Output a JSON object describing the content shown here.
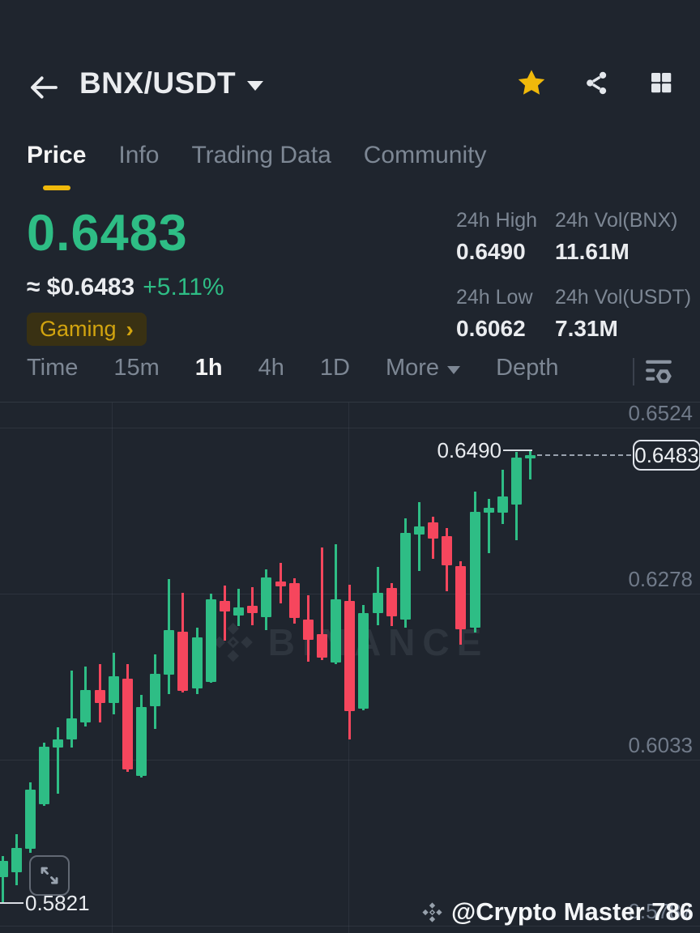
{
  "header": {
    "title": "BNX/USDT"
  },
  "tabs": [
    {
      "label": "Price",
      "active": true
    },
    {
      "label": "Info",
      "active": false
    },
    {
      "label": "Trading Data",
      "active": false
    },
    {
      "label": "Community",
      "active": false
    }
  ],
  "price": {
    "last": "0.6483",
    "fiat_approx": "≈ $0.6483",
    "change": "+5.11%",
    "tag_label": "Gaming",
    "tag_arrow": "›"
  },
  "stats": [
    {
      "label": "24h High",
      "value": "0.6490"
    },
    {
      "label": "24h Vol(BNX)",
      "value": "11.61M"
    },
    {
      "label": "24h Low",
      "value": "0.6062"
    },
    {
      "label": "24h Vol(USDT)",
      "value": "7.31M"
    }
  ],
  "toolbar": {
    "items": [
      {
        "label": "Time",
        "active": false,
        "caret": false
      },
      {
        "label": "15m",
        "active": false,
        "caret": false
      },
      {
        "label": "1h",
        "active": true,
        "caret": false
      },
      {
        "label": "4h",
        "active": false,
        "caret": false
      },
      {
        "label": "1D",
        "active": false,
        "caret": false
      },
      {
        "label": "More",
        "active": false,
        "caret": true
      },
      {
        "label": "Depth",
        "active": false,
        "caret": false
      }
    ]
  },
  "chart_data": {
    "type": "candlestick",
    "pair": "BNX/USDT",
    "interval": "1h",
    "ylim": [
      0.576,
      0.656
    ],
    "grid": true,
    "up_color": "#2ebd85",
    "down_color": "#f6465d",
    "y_ticks": [
      {
        "price": 0.6524,
        "label": "0.6524"
      },
      {
        "price": 0.6278,
        "label": "0.6278"
      },
      {
        "price": 0.6033,
        "label": "0.6033"
      },
      {
        "price": 0.5787,
        "label": "0.5787"
      }
    ],
    "high_marker": {
      "price": 0.649,
      "label": "0.6490"
    },
    "low_marker": {
      "price": 0.5821,
      "label": "0.5821"
    },
    "last_price": {
      "price": 0.6483,
      "label": "0.6483"
    },
    "candles": [
      {
        "o": 0.5859,
        "h": 0.589,
        "l": 0.5821,
        "c": 0.5883
      },
      {
        "o": 0.5867,
        "h": 0.5923,
        "l": 0.5847,
        "c": 0.5903
      },
      {
        "o": 0.5901,
        "h": 0.5999,
        "l": 0.5895,
        "c": 0.5989
      },
      {
        "o": 0.5967,
        "h": 0.6058,
        "l": 0.5965,
        "c": 0.6052
      },
      {
        "o": 0.6051,
        "h": 0.6081,
        "l": 0.5983,
        "c": 0.6063
      },
      {
        "o": 0.6063,
        "h": 0.6165,
        "l": 0.6051,
        "c": 0.6094
      },
      {
        "o": 0.6088,
        "h": 0.6171,
        "l": 0.6082,
        "c": 0.6136
      },
      {
        "o": 0.6136,
        "h": 0.6174,
        "l": 0.6088,
        "c": 0.6117
      },
      {
        "o": 0.6117,
        "h": 0.6191,
        "l": 0.61,
        "c": 0.6156
      },
      {
        "o": 0.6153,
        "h": 0.6174,
        "l": 0.6015,
        "c": 0.6019
      },
      {
        "o": 0.6009,
        "h": 0.6129,
        "l": 0.6007,
        "c": 0.6111
      },
      {
        "o": 0.6112,
        "h": 0.6189,
        "l": 0.6079,
        "c": 0.616
      },
      {
        "o": 0.6159,
        "h": 0.63,
        "l": 0.613,
        "c": 0.6225
      },
      {
        "o": 0.6222,
        "h": 0.628,
        "l": 0.6132,
        "c": 0.6135
      },
      {
        "o": 0.6138,
        "h": 0.6228,
        "l": 0.613,
        "c": 0.6214
      },
      {
        "o": 0.6148,
        "h": 0.6278,
        "l": 0.6147,
        "c": 0.627
      },
      {
        "o": 0.6268,
        "h": 0.629,
        "l": 0.6209,
        "c": 0.6252
      },
      {
        "o": 0.6246,
        "h": 0.6286,
        "l": 0.6231,
        "c": 0.6258
      },
      {
        "o": 0.6261,
        "h": 0.6288,
        "l": 0.6232,
        "c": 0.625
      },
      {
        "o": 0.6244,
        "h": 0.6314,
        "l": 0.6225,
        "c": 0.6302
      },
      {
        "o": 0.6297,
        "h": 0.6324,
        "l": 0.6264,
        "c": 0.6289
      },
      {
        "o": 0.6294,
        "h": 0.6301,
        "l": 0.6234,
        "c": 0.6243
      },
      {
        "o": 0.624,
        "h": 0.6276,
        "l": 0.6178,
        "c": 0.621
      },
      {
        "o": 0.6219,
        "h": 0.6347,
        "l": 0.618,
        "c": 0.6184
      },
      {
        "o": 0.6177,
        "h": 0.6352,
        "l": 0.6174,
        "c": 0.627
      },
      {
        "o": 0.6268,
        "h": 0.6292,
        "l": 0.6063,
        "c": 0.6105
      },
      {
        "o": 0.6108,
        "h": 0.6262,
        "l": 0.6106,
        "c": 0.625
      },
      {
        "o": 0.625,
        "h": 0.6318,
        "l": 0.6232,
        "c": 0.628
      },
      {
        "o": 0.6287,
        "h": 0.6294,
        "l": 0.6231,
        "c": 0.6245
      },
      {
        "o": 0.624,
        "h": 0.639,
        "l": 0.6228,
        "c": 0.6368
      },
      {
        "o": 0.6366,
        "h": 0.6414,
        "l": 0.6312,
        "c": 0.6378
      },
      {
        "o": 0.6384,
        "h": 0.6392,
        "l": 0.633,
        "c": 0.636
      },
      {
        "o": 0.6364,
        "h": 0.6376,
        "l": 0.6282,
        "c": 0.632
      },
      {
        "o": 0.6319,
        "h": 0.6326,
        "l": 0.6203,
        "c": 0.6226
      },
      {
        "o": 0.6228,
        "h": 0.6429,
        "l": 0.6221,
        "c": 0.6399
      },
      {
        "o": 0.6398,
        "h": 0.6419,
        "l": 0.6338,
        "c": 0.6405
      },
      {
        "o": 0.6398,
        "h": 0.6462,
        "l": 0.6381,
        "c": 0.6422
      },
      {
        "o": 0.641,
        "h": 0.6488,
        "l": 0.6358,
        "c": 0.648
      },
      {
        "o": 0.6478,
        "h": 0.649,
        "l": 0.6447,
        "c": 0.6483
      }
    ]
  },
  "watermarks": {
    "chart_logo_text": "BINANCE",
    "credit": "@Crypto Master 786"
  }
}
